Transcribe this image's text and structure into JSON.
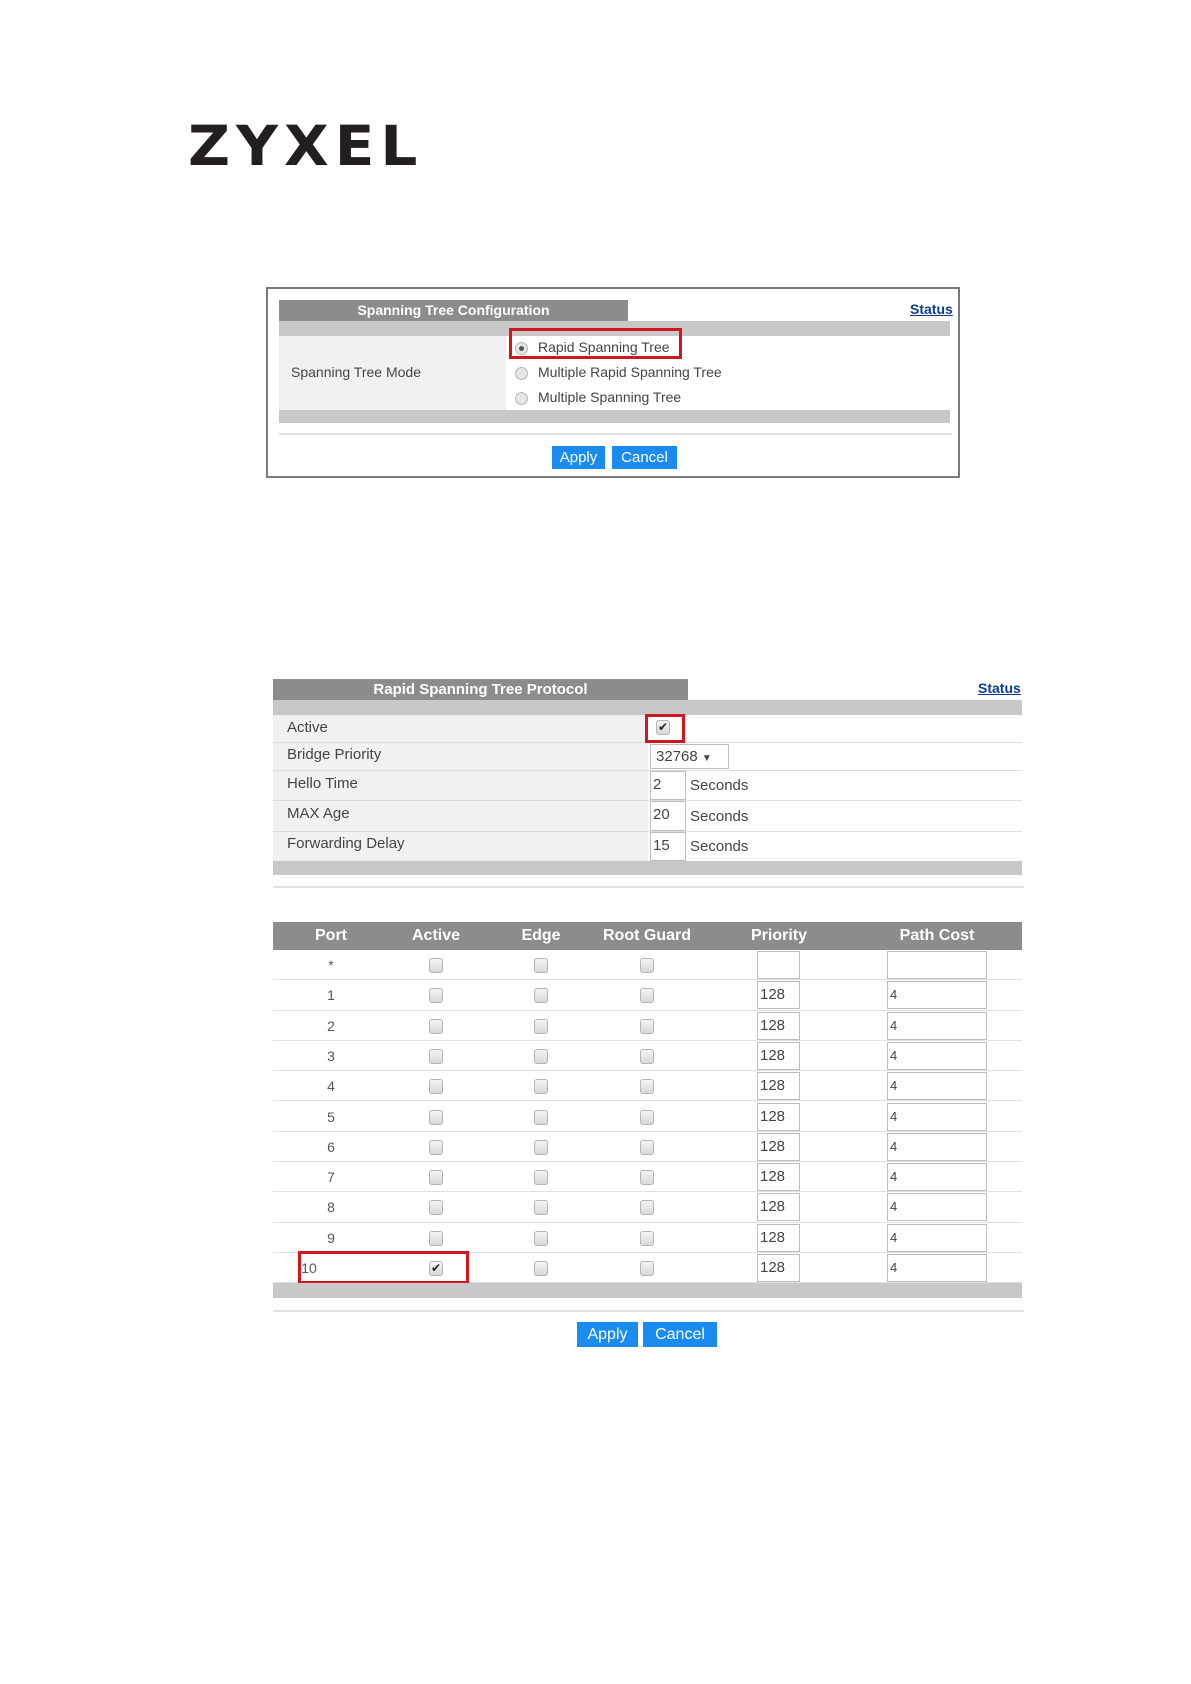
{
  "logo": "ZYXEL",
  "stp_config": {
    "title": "Spanning Tree Configuration",
    "status_link": "Status",
    "mode_label": "Spanning Tree Mode",
    "options": [
      {
        "label": "Rapid Spanning Tree",
        "selected": true
      },
      {
        "label": "Multiple Rapid Spanning Tree",
        "selected": false
      },
      {
        "label": "Multiple Spanning Tree",
        "selected": false
      }
    ],
    "apply": "Apply",
    "cancel": "Cancel"
  },
  "rstp": {
    "title": "Rapid Spanning Tree Protocol",
    "status_link": "Status",
    "active_label": "Active",
    "active_checked": true,
    "bridge_priority_label": "Bridge Priority",
    "bridge_priority": "32768",
    "hello_time_label": "Hello Time",
    "hello_time": "2",
    "max_age_label": "MAX Age",
    "max_age": "20",
    "forwarding_delay_label": "Forwarding Delay",
    "forwarding_delay": "15",
    "unit": "Seconds",
    "dropdown_icon": "triangle-down",
    "columns": [
      "Port",
      "Active",
      "Edge",
      "Root Guard",
      "Priority",
      "Path Cost"
    ],
    "ports": [
      {
        "port": "*",
        "active": false,
        "edge": false,
        "root_guard": false,
        "priority": "",
        "path_cost": ""
      },
      {
        "port": "1",
        "active": false,
        "edge": false,
        "root_guard": false,
        "priority": "128",
        "path_cost": "4"
      },
      {
        "port": "2",
        "active": false,
        "edge": false,
        "root_guard": false,
        "priority": "128",
        "path_cost": "4"
      },
      {
        "port": "3",
        "active": false,
        "edge": false,
        "root_guard": false,
        "priority": "128",
        "path_cost": "4"
      },
      {
        "port": "4",
        "active": false,
        "edge": false,
        "root_guard": false,
        "priority": "128",
        "path_cost": "4"
      },
      {
        "port": "5",
        "active": false,
        "edge": false,
        "root_guard": false,
        "priority": "128",
        "path_cost": "4"
      },
      {
        "port": "6",
        "active": false,
        "edge": false,
        "root_guard": false,
        "priority": "128",
        "path_cost": "4"
      },
      {
        "port": "7",
        "active": false,
        "edge": false,
        "root_guard": false,
        "priority": "128",
        "path_cost": "4"
      },
      {
        "port": "8",
        "active": false,
        "edge": false,
        "root_guard": false,
        "priority": "128",
        "path_cost": "4"
      },
      {
        "port": "9",
        "active": false,
        "edge": false,
        "root_guard": false,
        "priority": "128",
        "path_cost": "4"
      },
      {
        "port": "10",
        "active": true,
        "edge": false,
        "root_guard": false,
        "priority": "128",
        "path_cost": "4"
      }
    ],
    "apply": "Apply",
    "cancel": "Cancel"
  },
  "colors": {
    "accent": "#1a8cf0",
    "header": "#8c8c8c",
    "highlight": "#d0161f"
  }
}
